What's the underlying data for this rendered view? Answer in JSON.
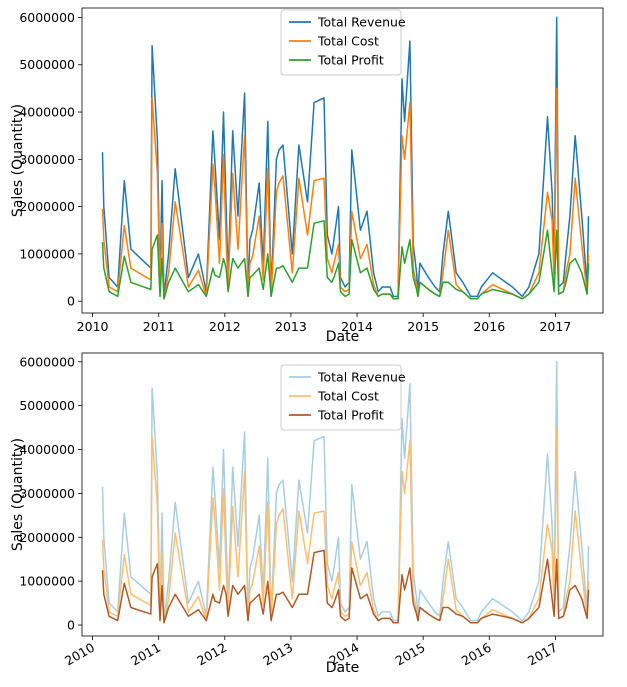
{
  "chart_data": [
    {
      "type": "line",
      "title": "",
      "xlabel": "Date",
      "ylabel": "Sales (Quantity)",
      "xlim": [
        2009.84,
        2017.72
      ],
      "ylim": [
        -250000,
        6200000
      ],
      "xticks": [
        "2010",
        "2011",
        "2012",
        "2013",
        "2014",
        "2015",
        "2016",
        "2017"
      ],
      "yticks": [
        "0",
        "1000000",
        "2000000",
        "3000000",
        "4000000",
        "5000000",
        "6000000"
      ],
      "legend_position": "top-center",
      "x_tick_rotation": 0,
      "series": [
        {
          "name": "Total Revenue",
          "color": "#1f77b4",
          "opacity": 1,
          "x": [
            2010.15,
            2010.17,
            2010.25,
            2010.38,
            2010.48,
            2010.58,
            2010.88,
            2010.9,
            2010.98,
            2011.02,
            2011.05,
            2011.08,
            2011.15,
            2011.25,
            2011.45,
            2011.6,
            2011.72,
            2011.82,
            2011.85,
            2011.92,
            2011.98,
            2012.02,
            2012.05,
            2012.12,
            2012.2,
            2012.3,
            2012.35,
            2012.38,
            2012.42,
            2012.52,
            2012.58,
            2012.65,
            2012.7,
            2012.78,
            2012.82,
            2012.88,
            2013.02,
            2013.12,
            2013.25,
            2013.35,
            2013.5,
            2013.55,
            2013.62,
            2013.65,
            2013.72,
            2013.75,
            2013.82,
            2013.88,
            2013.92,
            2014.05,
            2014.15,
            2014.25,
            2014.32,
            2014.38,
            2014.5,
            2014.55,
            2014.62,
            2014.68,
            2014.72,
            2014.8,
            2014.85,
            2014.9,
            2014.92,
            2014.95,
            2015.08,
            2015.18,
            2015.25,
            2015.3,
            2015.38,
            2015.5,
            2015.6,
            2015.72,
            2015.82,
            2015.88,
            2016.05,
            2016.35,
            2016.5,
            2016.6,
            2016.75,
            2016.88,
            2016.95,
            2016.98,
            2017.02,
            2017.05,
            2017.12,
            2017.16,
            2017.22,
            2017.3,
            2017.4,
            2017.48,
            2017.5
          ],
          "values": [
            3150000,
            2000000,
            500000,
            300000,
            2550000,
            1100000,
            700000,
            5400000,
            3400000,
            300000,
            2550000,
            100000,
            1000000,
            2800000,
            500000,
            1000000,
            200000,
            3600000,
            2950000,
            1300000,
            4000000,
            2000000,
            500000,
            3600000,
            1800000,
            4400000,
            200000,
            1300000,
            1500000,
            2500000,
            700000,
            3800000,
            200000,
            3000000,
            3200000,
            3300000,
            1000000,
            3300000,
            2100000,
            4200000,
            4300000,
            1400000,
            1000000,
            1300000,
            2000000,
            500000,
            300000,
            400000,
            3200000,
            1500000,
            1900000,
            600000,
            200000,
            300000,
            300000,
            100000,
            100000,
            4700000,
            3800000,
            5500000,
            1200000,
            600000,
            200000,
            800000,
            500000,
            300000,
            200000,
            1000000,
            1900000,
            600000,
            400000,
            100000,
            100000,
            300000,
            600000,
            300000,
            100000,
            300000,
            1000000,
            3900000,
            2300000,
            600000,
            6000000,
            300000,
            400000,
            1000000,
            1800000,
            3500000,
            1800000,
            300000,
            1800000
          ]
        },
        {
          "name": "Total Cost",
          "color": "#ff7f0e",
          "opacity": 1,
          "x": [
            2010.15,
            2010.17,
            2010.25,
            2010.38,
            2010.48,
            2010.58,
            2010.88,
            2010.9,
            2010.98,
            2011.02,
            2011.05,
            2011.08,
            2011.15,
            2011.25,
            2011.45,
            2011.6,
            2011.72,
            2011.82,
            2011.85,
            2011.92,
            2011.98,
            2012.02,
            2012.05,
            2012.12,
            2012.2,
            2012.3,
            2012.35,
            2012.38,
            2012.42,
            2012.52,
            2012.58,
            2012.65,
            2012.7,
            2012.78,
            2012.82,
            2012.88,
            2013.02,
            2013.12,
            2013.25,
            2013.35,
            2013.5,
            2013.55,
            2013.62,
            2013.65,
            2013.72,
            2013.75,
            2013.82,
            2013.88,
            2013.92,
            2014.05,
            2014.15,
            2014.25,
            2014.32,
            2014.38,
            2014.5,
            2014.55,
            2014.62,
            2014.68,
            2014.72,
            2014.8,
            2014.85,
            2014.9,
            2014.92,
            2014.95,
            2015.08,
            2015.18,
            2015.25,
            2015.3,
            2015.38,
            2015.5,
            2015.6,
            2015.72,
            2015.82,
            2015.88,
            2016.05,
            2016.35,
            2016.5,
            2016.6,
            2016.75,
            2016.88,
            2016.95,
            2016.98,
            2017.02,
            2017.05,
            2017.12,
            2017.16,
            2017.22,
            2017.3,
            2017.4,
            2017.48,
            2017.5
          ],
          "values": [
            1950000,
            1300000,
            300000,
            200000,
            1600000,
            700000,
            450000,
            4300000,
            2700000,
            200000,
            1650000,
            50000,
            600000,
            2100000,
            300000,
            650000,
            100000,
            2900000,
            2400000,
            800000,
            3100000,
            1300000,
            300000,
            2700000,
            1100000,
            3500000,
            100000,
            800000,
            950000,
            1800000,
            450000,
            2800000,
            100000,
            2300000,
            2500000,
            2650000,
            600000,
            2600000,
            1400000,
            2550000,
            2600000,
            900000,
            600000,
            800000,
            1200000,
            300000,
            200000,
            250000,
            1900000,
            900000,
            1200000,
            350000,
            100000,
            150000,
            150000,
            50000,
            50000,
            3500000,
            3000000,
            4200000,
            700000,
            350000,
            100000,
            400000,
            250000,
            150000,
            100000,
            600000,
            1500000,
            350000,
            200000,
            50000,
            50000,
            150000,
            350000,
            150000,
            50000,
            150000,
            600000,
            2300000,
            1700000,
            400000,
            4500000,
            150000,
            200000,
            600000,
            1000000,
            2600000,
            1200000,
            150000,
            1000000
          ]
        },
        {
          "name": "Total Profit",
          "color": "#2ca02c",
          "opacity": 1,
          "x": [
            2010.15,
            2010.17,
            2010.25,
            2010.38,
            2010.48,
            2010.58,
            2010.88,
            2010.9,
            2010.98,
            2011.02,
            2011.05,
            2011.08,
            2011.15,
            2011.25,
            2011.45,
            2011.6,
            2011.72,
            2011.82,
            2011.85,
            2011.92,
            2011.98,
            2012.02,
            2012.05,
            2012.12,
            2012.2,
            2012.3,
            2012.35,
            2012.38,
            2012.42,
            2012.52,
            2012.58,
            2012.65,
            2012.7,
            2012.78,
            2012.82,
            2012.88,
            2013.02,
            2013.12,
            2013.25,
            2013.35,
            2013.5,
            2013.55,
            2013.62,
            2013.65,
            2013.72,
            2013.75,
            2013.82,
            2013.88,
            2013.92,
            2014.05,
            2014.15,
            2014.25,
            2014.32,
            2014.38,
            2014.5,
            2014.55,
            2014.62,
            2014.68,
            2014.72,
            2014.8,
            2014.85,
            2014.9,
            2014.92,
            2014.95,
            2015.08,
            2015.18,
            2015.25,
            2015.3,
            2015.38,
            2015.5,
            2015.6,
            2015.72,
            2015.82,
            2015.88,
            2016.05,
            2016.35,
            2016.5,
            2016.6,
            2016.75,
            2016.88,
            2016.95,
            2016.98,
            2017.02,
            2017.05,
            2017.12,
            2017.16,
            2017.22,
            2017.3,
            2017.4,
            2017.48,
            2017.5
          ],
          "values": [
            1250000,
            700000,
            200000,
            100000,
            950000,
            400000,
            250000,
            1100000,
            1400000,
            100000,
            900000,
            50000,
            400000,
            700000,
            200000,
            350000,
            100000,
            700000,
            550000,
            500000,
            900000,
            700000,
            200000,
            900000,
            700000,
            900000,
            100000,
            500000,
            550000,
            700000,
            250000,
            1000000,
            100000,
            700000,
            700000,
            750000,
            400000,
            700000,
            700000,
            1650000,
            1700000,
            500000,
            400000,
            500000,
            800000,
            200000,
            100000,
            150000,
            1300000,
            600000,
            700000,
            250000,
            100000,
            150000,
            150000,
            50000,
            50000,
            1150000,
            800000,
            1300000,
            500000,
            250000,
            100000,
            400000,
            250000,
            150000,
            100000,
            400000,
            400000,
            250000,
            200000,
            50000,
            50000,
            150000,
            250000,
            150000,
            50000,
            150000,
            400000,
            1500000,
            600000,
            200000,
            1500000,
            150000,
            200000,
            400000,
            800000,
            900000,
            600000,
            150000,
            800000
          ]
        }
      ]
    },
    {
      "type": "line",
      "title": "",
      "xlabel": "Date",
      "ylabel": "Sales (Quantity)",
      "xlim": [
        2009.84,
        2017.72
      ],
      "ylim": [
        -250000,
        6200000
      ],
      "xticks": [
        "2010",
        "2011",
        "2012",
        "2013",
        "2014",
        "2015",
        "2016",
        "2017"
      ],
      "yticks": [
        "0",
        "1000000",
        "2000000",
        "3000000",
        "4000000",
        "5000000",
        "6000000"
      ],
      "legend_position": "top-center",
      "x_tick_rotation": 30,
      "series": [
        {
          "name": "Total Revenue",
          "color": "#a6cee3",
          "opacity": 1,
          "ref": 0
        },
        {
          "name": "Total Cost",
          "color": "#fdbf6f",
          "opacity": 1,
          "ref": 1
        },
        {
          "name": "Total Profit",
          "color": "#b15928",
          "opacity": 1,
          "ref": 2
        }
      ]
    }
  ]
}
